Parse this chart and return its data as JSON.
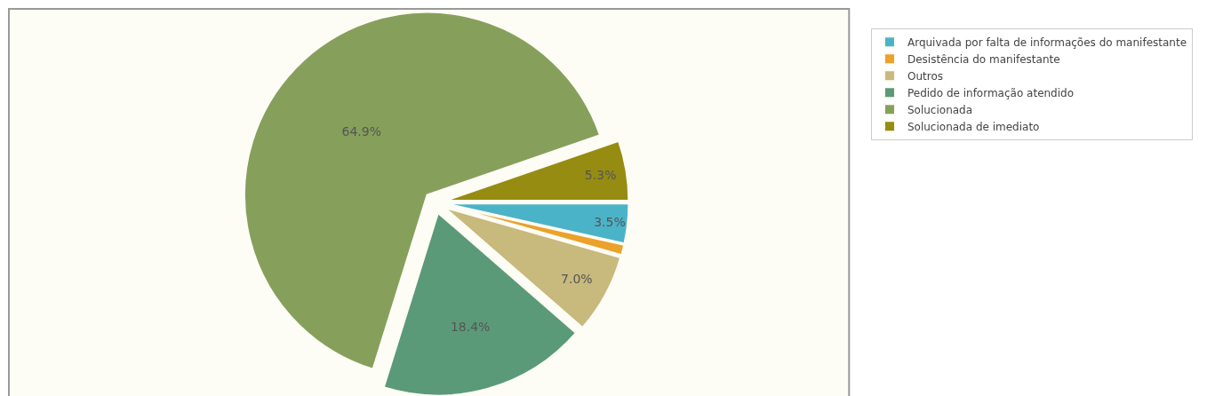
{
  "chart_data": {
    "type": "pie",
    "categories": [
      "Arquivada por falta de informações do manifestante",
      "Desistência do manifestante",
      "Outros",
      "Pedido de informação atendido",
      "Solucionada",
      "Solucionada de imediato"
    ],
    "values": [
      3.5,
      0.9,
      7.0,
      18.4,
      64.9,
      5.3
    ],
    "value_labels": [
      "3.5%",
      null,
      "7.0%",
      "18.4%",
      "64.9%",
      "5.3%"
    ],
    "colors": [
      "#4bb3c8",
      "#eba12a",
      "#c8b97c",
      "#5a9a78",
      "#86a05c",
      "#968c12"
    ],
    "legend": "top right"
  }
}
